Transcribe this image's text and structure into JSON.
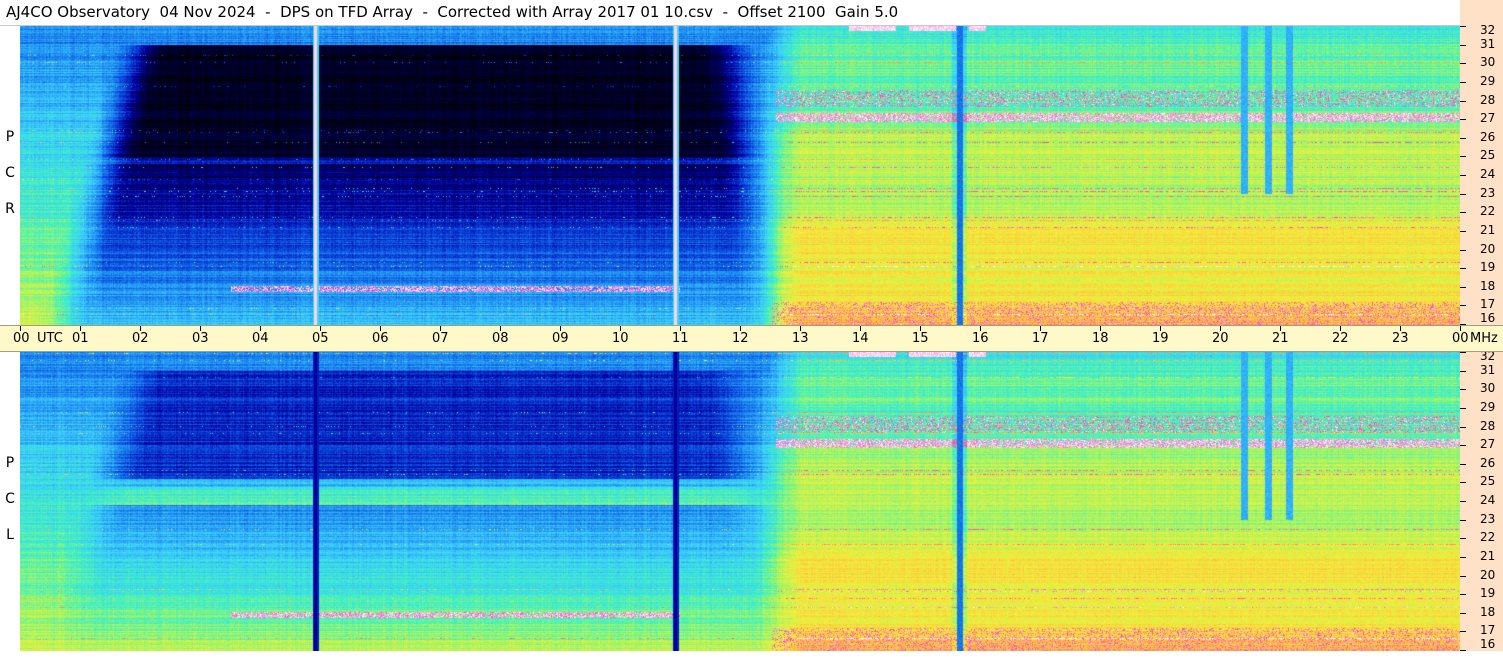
{
  "title": "AJ4CO Observatory  04 Nov 2024  -  DPS on TFD Array  -  Corrected with Array 2017 01 10.csv  -  Offset 2100  Gain 5.0",
  "chart_data": {
    "type": "heatmap",
    "title": "AJ4CO Observatory  04 Nov 2024  -  DPS on TFD Array  -  Corrected with Array 2017 01 10.csv  -  Offset 2100  Gain 5.0",
    "panels": [
      {
        "name": "RCP",
        "label_letters": [
          "P",
          "C",
          "R"
        ]
      },
      {
        "name": "LCP",
        "label_letters": [
          "P",
          "C",
          "L"
        ]
      }
    ],
    "x_axis": {
      "unit_label": "UTC",
      "range_hours": [
        0,
        24
      ],
      "tick_labels": [
        "00",
        "01",
        "02",
        "03",
        "04",
        "05",
        "06",
        "07",
        "08",
        "09",
        "10",
        "11",
        "12",
        "13",
        "14",
        "15",
        "16",
        "17",
        "18",
        "19",
        "20",
        "21",
        "22",
        "23",
        "00"
      ]
    },
    "y_axis": {
      "unit_label": "MHz",
      "range_mhz": [
        16,
        32
      ],
      "tick_labels": [
        "16",
        "17",
        "18",
        "19",
        "20",
        "21",
        "22",
        "23",
        "24",
        "25",
        "26",
        "27",
        "28",
        "29",
        "30",
        "31",
        "32"
      ]
    },
    "features": {
      "sunrise_transition_hour": 12.6,
      "vertical_marker_hours": [
        4.92,
        10.92
      ],
      "dark_band_hours": [
        1.0,
        12.5
      ],
      "bright_band_freqs_mhz": [
        27.1,
        17.9
      ],
      "narrow_strip_hour": 15.65,
      "hot_segment_hours": [
        [
          13.8,
          14.6
        ],
        [
          14.8,
          15.6
        ],
        [
          15.8,
          16.1
        ]
      ],
      "rfi_column_hours": [
        20.4,
        20.8,
        21.15
      ]
    },
    "colormap": [
      "#000000",
      "#00003c",
      "#0000a0",
      "#0a46dc",
      "#1e8cf0",
      "#3cc8ff",
      "#3cf0c8",
      "#a0f564",
      "#f0f03c",
      "#ffc83c",
      "#ff8c64",
      "#ff3cc8",
      "#ffffff"
    ]
  }
}
